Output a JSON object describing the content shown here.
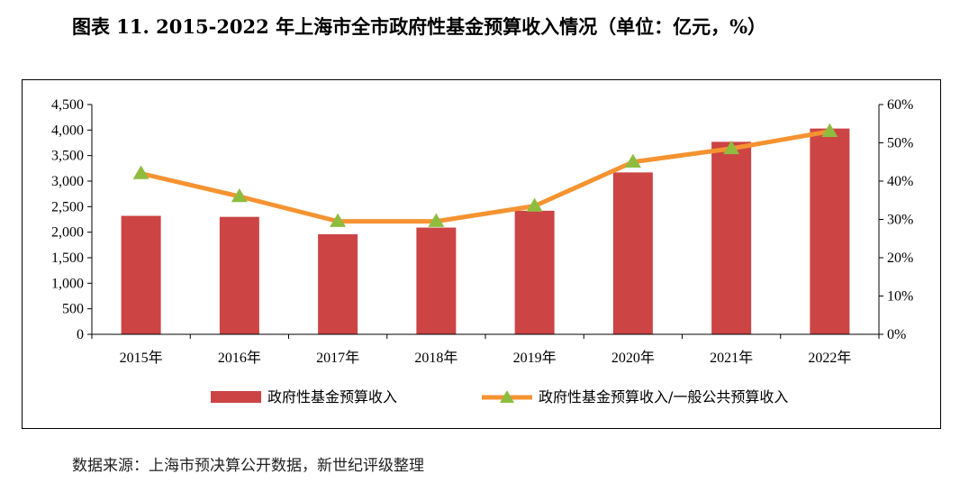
{
  "title": "图表 11. 2015-2022 年上海市全市政府性基金预算收入情况（单位：亿元，%）",
  "source": "数据来源：上海市预决算公开数据，新世纪评级整理",
  "colors": {
    "bar": "#cc4444",
    "line": "#f59331",
    "marker": "#8fbc3f"
  },
  "chart_data": {
    "type": "bar",
    "categories": [
      "2015年",
      "2016年",
      "2017年",
      "2018年",
      "2019年",
      "2020年",
      "2021年",
      "2022年"
    ],
    "series": [
      {
        "name": "政府性基金预算收入",
        "type": "bar",
        "axis": "left",
        "values": [
          2320,
          2300,
          1960,
          2090,
          2420,
          3170,
          3770,
          4030
        ]
      },
      {
        "name": "政府性基金预算收入/一般公共预算收入",
        "type": "line",
        "axis": "right",
        "values": [
          42,
          36,
          29.5,
          29.5,
          33.5,
          45,
          48.5,
          53
        ]
      }
    ],
    "yleft": {
      "min": 0,
      "max": 4500,
      "step": 500,
      "tick_labels": [
        "0",
        "500",
        "1,000",
        "1,500",
        "2,000",
        "2,500",
        "3,000",
        "3,500",
        "4,000",
        "4,500"
      ]
    },
    "yright": {
      "min": 0,
      "max": 60,
      "step": 10,
      "tick_labels": [
        "0%",
        "10%",
        "20%",
        "30%",
        "40%",
        "50%",
        "60%"
      ]
    },
    "legend_position": "bottom",
    "grid": false
  }
}
